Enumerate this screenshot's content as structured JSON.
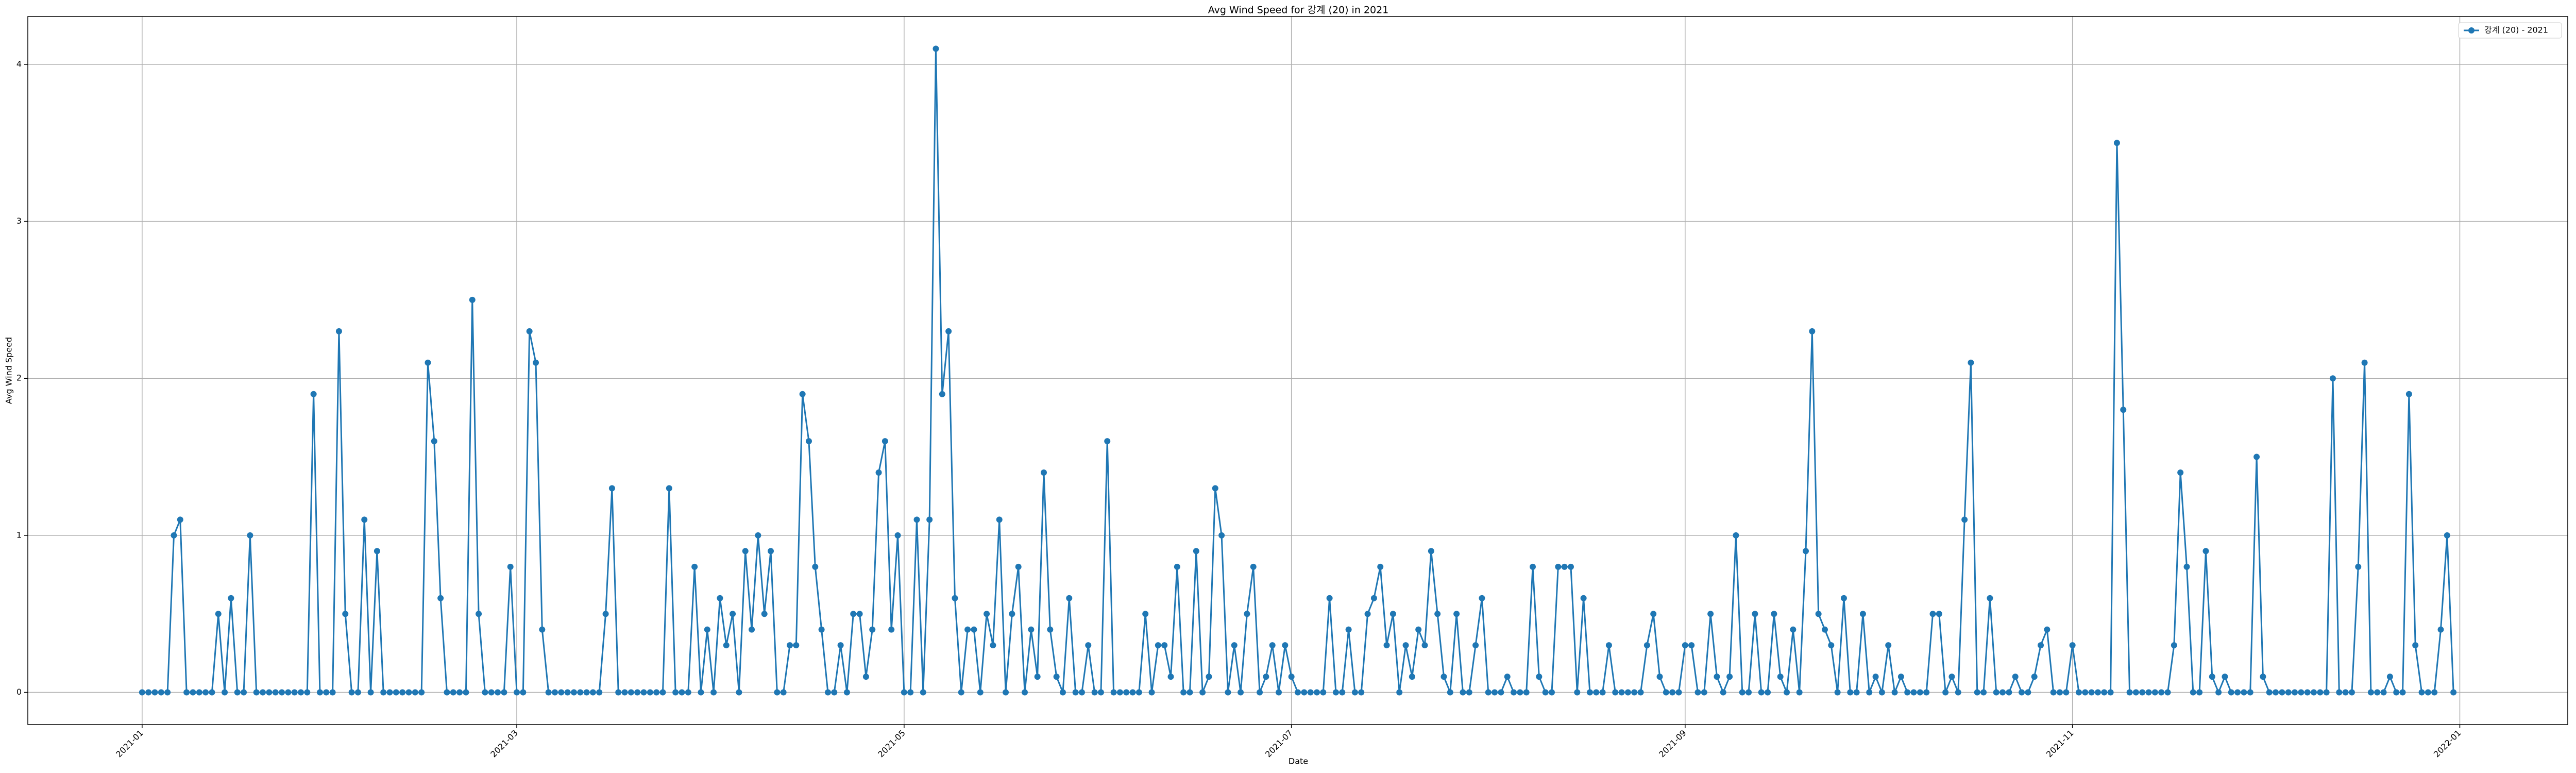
{
  "chart_data": {
    "type": "line",
    "title": "Avg Wind Speed for 강계 (20) in 2021",
    "xlabel": "Date",
    "ylabel": "Avg Wind Speed",
    "grid": true,
    "legend": "upper right",
    "xlim": [
      "2020-12-14",
      "2022-01-18"
    ],
    "xticks": [
      {
        "value": "2021-01-01",
        "label": "2021-01"
      },
      {
        "value": "2021-03-01",
        "label": "2021-03"
      },
      {
        "value": "2021-05-01",
        "label": "2021-05"
      },
      {
        "value": "2021-07-01",
        "label": "2021-07"
      },
      {
        "value": "2021-09-01",
        "label": "2021-09"
      },
      {
        "value": "2021-11-01",
        "label": "2021-11"
      },
      {
        "value": "2022-01-01",
        "label": "2022-01"
      }
    ],
    "ylim": [
      -0.205,
      4.305
    ],
    "yticks": [
      0,
      1,
      2,
      3,
      4
    ],
    "x": [
      "2021-01-01",
      "2021-01-02",
      "2021-01-03",
      "2021-01-04",
      "2021-01-05",
      "2021-01-06",
      "2021-01-07",
      "2021-01-08",
      "2021-01-09",
      "2021-01-10",
      "2021-01-11",
      "2021-01-12",
      "2021-01-13",
      "2021-01-14",
      "2021-01-15",
      "2021-01-16",
      "2021-01-17",
      "2021-01-18",
      "2021-01-19",
      "2021-01-20",
      "2021-01-21",
      "2021-01-22",
      "2021-01-23",
      "2021-01-24",
      "2021-01-25",
      "2021-01-26",
      "2021-01-27",
      "2021-01-28",
      "2021-01-29",
      "2021-01-30",
      "2021-01-31",
      "2021-02-01",
      "2021-02-02",
      "2021-02-03",
      "2021-02-04",
      "2021-02-05",
      "2021-02-06",
      "2021-02-07",
      "2021-02-08",
      "2021-02-09",
      "2021-02-10",
      "2021-02-11",
      "2021-02-12",
      "2021-02-13",
      "2021-02-14",
      "2021-02-15",
      "2021-02-16",
      "2021-02-17",
      "2021-02-18",
      "2021-02-19",
      "2021-02-20",
      "2021-02-21",
      "2021-02-22",
      "2021-02-23",
      "2021-02-24",
      "2021-02-25",
      "2021-02-26",
      "2021-02-27",
      "2021-02-28",
      "2021-03-01",
      "2021-03-02",
      "2021-03-03",
      "2021-03-04",
      "2021-03-05",
      "2021-03-06",
      "2021-03-07",
      "2021-03-08",
      "2021-03-09",
      "2021-03-10",
      "2021-03-11",
      "2021-03-12",
      "2021-03-13",
      "2021-03-14",
      "2021-03-15",
      "2021-03-16",
      "2021-03-17",
      "2021-03-18",
      "2021-03-19",
      "2021-03-20",
      "2021-03-21",
      "2021-03-22",
      "2021-03-23",
      "2021-03-24",
      "2021-03-25",
      "2021-03-26",
      "2021-03-27",
      "2021-03-28",
      "2021-03-29",
      "2021-03-30",
      "2021-03-31",
      "2021-04-01",
      "2021-04-02",
      "2021-04-03",
      "2021-04-04",
      "2021-04-05",
      "2021-04-06",
      "2021-04-07",
      "2021-04-08",
      "2021-04-09",
      "2021-04-10",
      "2021-04-11",
      "2021-04-12",
      "2021-04-13",
      "2021-04-14",
      "2021-04-15",
      "2021-04-16",
      "2021-04-17",
      "2021-04-18",
      "2021-04-19",
      "2021-04-20",
      "2021-04-21",
      "2021-04-22",
      "2021-04-23",
      "2021-04-24",
      "2021-04-25",
      "2021-04-26",
      "2021-04-27",
      "2021-04-28",
      "2021-04-29",
      "2021-04-30",
      "2021-05-01",
      "2021-05-02",
      "2021-05-03",
      "2021-05-04",
      "2021-05-05",
      "2021-05-06",
      "2021-05-07",
      "2021-05-08",
      "2021-05-09",
      "2021-05-10",
      "2021-05-11",
      "2021-05-12",
      "2021-05-13",
      "2021-05-14",
      "2021-05-15",
      "2021-05-16",
      "2021-05-17",
      "2021-05-18",
      "2021-05-19",
      "2021-05-20",
      "2021-05-21",
      "2021-05-22",
      "2021-05-23",
      "2021-05-24",
      "2021-05-25",
      "2021-05-26",
      "2021-05-27",
      "2021-05-28",
      "2021-05-29",
      "2021-05-30",
      "2021-05-31",
      "2021-06-01",
      "2021-06-02",
      "2021-06-03",
      "2021-06-04",
      "2021-06-05",
      "2021-06-06",
      "2021-06-07",
      "2021-06-08",
      "2021-06-09",
      "2021-06-10",
      "2021-06-11",
      "2021-06-12",
      "2021-06-13",
      "2021-06-14",
      "2021-06-15",
      "2021-06-16",
      "2021-06-17",
      "2021-06-18",
      "2021-06-19",
      "2021-06-20",
      "2021-06-21",
      "2021-06-22",
      "2021-06-23",
      "2021-06-24",
      "2021-06-25",
      "2021-06-26",
      "2021-06-27",
      "2021-06-28",
      "2021-06-29",
      "2021-06-30",
      "2021-07-01",
      "2021-07-02",
      "2021-07-03",
      "2021-07-04",
      "2021-07-05",
      "2021-07-06",
      "2021-07-07",
      "2021-07-08",
      "2021-07-09",
      "2021-07-10",
      "2021-07-11",
      "2021-07-12",
      "2021-07-13",
      "2021-07-14",
      "2021-07-15",
      "2021-07-16",
      "2021-07-17",
      "2021-07-18",
      "2021-07-19",
      "2021-07-20",
      "2021-07-21",
      "2021-07-22",
      "2021-07-23",
      "2021-07-24",
      "2021-07-25",
      "2021-07-26",
      "2021-07-27",
      "2021-07-28",
      "2021-07-29",
      "2021-07-30",
      "2021-07-31",
      "2021-08-01",
      "2021-08-02",
      "2021-08-03",
      "2021-08-04",
      "2021-08-05",
      "2021-08-06",
      "2021-08-07",
      "2021-08-08",
      "2021-08-09",
      "2021-08-10",
      "2021-08-11",
      "2021-08-12",
      "2021-08-13",
      "2021-08-14",
      "2021-08-15",
      "2021-08-16",
      "2021-08-17",
      "2021-08-18",
      "2021-08-19",
      "2021-08-20",
      "2021-08-21",
      "2021-08-22",
      "2021-08-23",
      "2021-08-24",
      "2021-08-25",
      "2021-08-26",
      "2021-08-27",
      "2021-08-28",
      "2021-08-29",
      "2021-08-30",
      "2021-08-31",
      "2021-09-01",
      "2021-09-02",
      "2021-09-03",
      "2021-09-04",
      "2021-09-05",
      "2021-09-06",
      "2021-09-07",
      "2021-09-08",
      "2021-09-09",
      "2021-09-10",
      "2021-09-11",
      "2021-09-12",
      "2021-09-13",
      "2021-09-14",
      "2021-09-15",
      "2021-09-16",
      "2021-09-17",
      "2021-09-18",
      "2021-09-19",
      "2021-09-20",
      "2021-09-21",
      "2021-09-22",
      "2021-09-23",
      "2021-09-24",
      "2021-09-25",
      "2021-09-26",
      "2021-09-27",
      "2021-09-28",
      "2021-09-29",
      "2021-09-30",
      "2021-10-01",
      "2021-10-02",
      "2021-10-03",
      "2021-10-04",
      "2021-10-05",
      "2021-10-06",
      "2021-10-07",
      "2021-10-08",
      "2021-10-09",
      "2021-10-10",
      "2021-10-11",
      "2021-10-12",
      "2021-10-13",
      "2021-10-14",
      "2021-10-15",
      "2021-10-16",
      "2021-10-17",
      "2021-10-18",
      "2021-10-19",
      "2021-10-20",
      "2021-10-21",
      "2021-10-22",
      "2021-10-23",
      "2021-10-24",
      "2021-10-25",
      "2021-10-26",
      "2021-10-27",
      "2021-10-28",
      "2021-10-29",
      "2021-10-30",
      "2021-10-31",
      "2021-11-01",
      "2021-11-02",
      "2021-11-03",
      "2021-11-04",
      "2021-11-05",
      "2021-11-06",
      "2021-11-07",
      "2021-11-08",
      "2021-11-09",
      "2021-11-10",
      "2021-11-11",
      "2021-11-12",
      "2021-11-13",
      "2021-11-14",
      "2021-11-15",
      "2021-11-16",
      "2021-11-17",
      "2021-11-18",
      "2021-11-19",
      "2021-11-20",
      "2021-11-21",
      "2021-11-22",
      "2021-11-23",
      "2021-11-24",
      "2021-11-25",
      "2021-11-26",
      "2021-11-27",
      "2021-11-28",
      "2021-11-29",
      "2021-11-30",
      "2021-12-01",
      "2021-12-02",
      "2021-12-03",
      "2021-12-04",
      "2021-12-05",
      "2021-12-06",
      "2021-12-07",
      "2021-12-08",
      "2021-12-09",
      "2021-12-10",
      "2021-12-11",
      "2021-12-12",
      "2021-12-13",
      "2021-12-14",
      "2021-12-15",
      "2021-12-16",
      "2021-12-17",
      "2021-12-18",
      "2021-12-19",
      "2021-12-20",
      "2021-12-21",
      "2021-12-22",
      "2021-12-23",
      "2021-12-24",
      "2021-12-25",
      "2021-12-26",
      "2021-12-27",
      "2021-12-28",
      "2021-12-29",
      "2021-12-30",
      "2021-12-31"
    ],
    "series": [
      {
        "name": "강계 (20) - 2021",
        "color": "#1f77b4",
        "values": [
          0,
          0,
          0,
          0,
          0,
          1.0,
          1.1,
          0,
          0,
          0,
          0,
          0,
          0.5,
          0,
          0.6,
          0,
          0,
          1.0,
          0,
          0,
          0,
          0,
          0,
          0,
          0,
          0,
          0,
          1.9,
          0,
          0,
          0,
          2.3,
          0.5,
          0,
          0,
          1.1,
          0,
          0.9,
          0,
          0,
          0,
          0,
          0,
          0,
          0,
          2.1,
          1.6,
          0.6,
          0,
          0,
          0,
          0,
          2.5,
          0.5,
          0,
          0,
          0,
          0,
          0.8,
          0,
          0,
          2.3,
          2.1,
          0.4,
          0,
          0,
          0,
          0,
          0,
          0,
          0,
          0,
          0,
          0.5,
          1.3,
          0,
          0,
          0,
          0,
          0,
          0,
          0,
          0,
          1.3,
          0,
          0,
          0,
          0.8,
          0,
          0.4,
          0,
          0.6,
          0.3,
          0.5,
          0,
          0.9,
          0.4,
          1.0,
          0.5,
          0.9,
          0,
          0,
          0.3,
          0.3,
          1.9,
          1.6,
          0.8,
          0.4,
          0,
          0,
          0.3,
          0,
          0.5,
          0.5,
          0.1,
          0.4,
          1.4,
          1.6,
          0.4,
          1.0,
          0,
          0,
          1.1,
          0,
          1.1,
          4.1,
          1.9,
          2.3,
          0.6,
          0,
          0.4,
          0.4,
          0,
          0.5,
          0.3,
          1.1,
          0,
          0.5,
          0.8,
          0,
          0.4,
          0.1,
          1.4,
          0.4,
          0.1,
          0,
          0.6,
          0,
          0,
          0.3,
          0,
          0,
          1.6,
          0,
          0,
          0,
          0,
          0,
          0.5,
          0,
          0.3,
          0.3,
          0.1,
          0.8,
          0,
          0,
          0.9,
          0,
          0.1,
          1.3,
          1.0,
          0,
          0.3,
          0,
          0.5,
          0.8,
          0,
          0.1,
          0.3,
          0,
          0.3,
          0.1,
          0,
          0,
          0,
          0,
          0,
          0.6,
          0,
          0,
          0.4,
          0,
          0,
          0.5,
          0.6,
          0.8,
          0.3,
          0.5,
          0,
          0.3,
          0.1,
          0.4,
          0.3,
          0.9,
          0.5,
          0.1,
          0,
          0.5,
          0,
          0,
          0.3,
          0.6,
          0,
          0,
          0,
          0.1,
          0,
          0,
          0,
          0.8,
          0.1,
          0,
          0,
          0.8,
          0.8,
          0.8,
          0,
          0.6,
          0,
          0,
          0,
          0.3,
          0,
          0,
          0,
          0,
          0,
          0.3,
          0.5,
          0.1,
          0,
          0,
          0,
          0.3,
          0.3,
          0,
          0,
          0.5,
          0.1,
          0,
          0.1,
          1.0,
          0,
          0,
          0.5,
          0,
          0,
          0.5,
          0.1,
          0,
          0.4,
          0,
          0.9,
          2.3,
          0.5,
          0.4,
          0.3,
          0,
          0.6,
          0,
          0,
          0.5,
          0,
          0.1,
          0,
          0.3,
          0,
          0.1,
          0,
          0,
          0,
          0,
          0.5,
          0.5,
          0,
          0.1,
          0,
          1.1,
          2.1,
          0,
          0,
          0.6,
          0,
          0,
          0,
          0.1,
          0,
          0,
          0.1,
          0.3,
          0.4,
          0,
          0,
          0,
          0.3,
          0,
          0,
          0,
          0,
          0,
          0,
          3.5,
          1.8,
          0,
          0,
          0,
          0,
          0,
          0,
          0,
          0.3,
          1.4,
          0.8,
          0,
          0,
          0.9,
          0.1,
          0,
          0.1,
          0,
          0,
          0,
          0,
          1.5,
          0.1,
          0,
          0,
          0,
          0,
          0,
          0,
          0,
          0,
          0,
          0,
          2.0,
          0,
          0,
          0,
          0.8,
          2.1,
          0,
          0,
          0,
          0.1,
          0,
          0,
          1.9,
          0.3,
          0,
          0,
          0,
          0.4,
          1.0,
          0
        ]
      }
    ]
  }
}
